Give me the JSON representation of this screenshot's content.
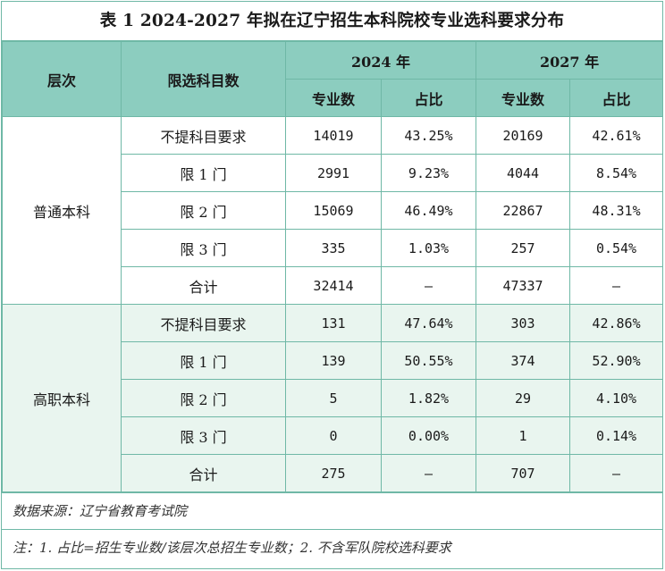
{
  "title": "表 1  2024-2027 年拟在辽宁招生本科院校专业选科要求分布",
  "header": {
    "level": "层次",
    "subject_req": "限选科目数",
    "year_2024": "2024 年",
    "year_2027": "2027 年",
    "major_count": "专业数",
    "ratio": "占比"
  },
  "groups": [
    {
      "level": "普通本科",
      "rows": [
        {
          "req": "不提科目要求",
          "c2024": "14019",
          "p2024": "43.25%",
          "c2027": "20169",
          "p2027": "42.61%"
        },
        {
          "req": "限 1 门",
          "c2024": "2991",
          "p2024": "9.23%",
          "c2027": "4044",
          "p2027": "8.54%"
        },
        {
          "req": "限 2 门",
          "c2024": "15069",
          "p2024": "46.49%",
          "c2027": "22867",
          "p2027": "48.31%"
        },
        {
          "req": "限 3 门",
          "c2024": "335",
          "p2024": "1.03%",
          "c2027": "257",
          "p2027": "0.54%"
        },
        {
          "req": "合计",
          "c2024": "32414",
          "p2024": "–",
          "c2027": "47337",
          "p2027": "–"
        }
      ]
    },
    {
      "level": "高职本科",
      "rows": [
        {
          "req": "不提科目要求",
          "c2024": "131",
          "p2024": "47.64%",
          "c2027": "303",
          "p2027": "42.86%"
        },
        {
          "req": "限 1 门",
          "c2024": "139",
          "p2024": "50.55%",
          "c2027": "374",
          "p2027": "52.90%"
        },
        {
          "req": "限 2 门",
          "c2024": "5",
          "p2024": "1.82%",
          "c2027": "29",
          "p2027": "4.10%"
        },
        {
          "req": "限 3 门",
          "c2024": "0",
          "p2024": "0.00%",
          "c2027": "1",
          "p2027": "0.14%"
        },
        {
          "req": "合计",
          "c2024": "275",
          "p2024": "–",
          "c2027": "707",
          "p2027": "–"
        }
      ]
    }
  ],
  "source": "数据来源：辽宁省教育考试院",
  "note": "注：1. 占比=招生专业数/该层次总招生专业数；2. 不含军队院校选科要求",
  "colors": {
    "border": "#6fb8a6",
    "header_bg": "#8ccdbf",
    "group2_bg": "#e9f5ef"
  }
}
